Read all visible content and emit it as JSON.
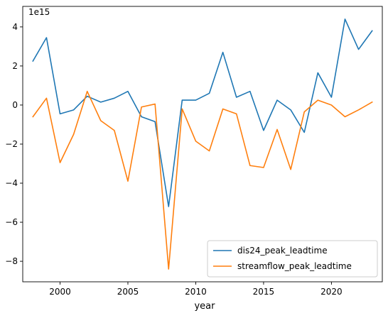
{
  "chart_data": {
    "type": "line",
    "title": "",
    "xlabel": "year",
    "ylabel": "",
    "y_scale_label": "1e15",
    "xlim": [
      1997.25,
      2023.75
    ],
    "ylim": [
      -9.05,
      5.05
    ],
    "x_ticks": [
      {
        "value": 2000,
        "label": "2000"
      },
      {
        "value": 2005,
        "label": "2005"
      },
      {
        "value": 2010,
        "label": "2010"
      },
      {
        "value": 2015,
        "label": "2015"
      },
      {
        "value": 2020,
        "label": "2020"
      }
    ],
    "y_ticks": [
      {
        "value": 4,
        "label": "4"
      },
      {
        "value": 2,
        "label": "2"
      },
      {
        "value": 0,
        "label": "0"
      },
      {
        "value": -2,
        "label": "−2"
      },
      {
        "value": -4,
        "label": "−4"
      },
      {
        "value": -6,
        "label": "−6"
      },
      {
        "value": -8,
        "label": "−8"
      }
    ],
    "grid": false,
    "legend_position": "lower-right",
    "x": [
      1998,
      1999,
      2000,
      2001,
      2002,
      2003,
      2004,
      2005,
      2006,
      2007,
      2008,
      2009,
      2010,
      2011,
      2012,
      2013,
      2014,
      2015,
      2016,
      2017,
      2018,
      2019,
      2020,
      2021,
      2022,
      2023
    ],
    "series": [
      {
        "name": "dis24_peak_leadtime",
        "color": "#1f77b4",
        "values": [
          2.25,
          3.45,
          -0.45,
          -0.25,
          0.45,
          0.15,
          0.35,
          0.7,
          -0.6,
          -0.85,
          -5.2,
          0.25,
          0.25,
          0.6,
          2.7,
          0.4,
          0.7,
          -1.3,
          0.25,
          -0.25,
          -1.4,
          1.65,
          0.4,
          4.4,
          2.85,
          3.8
        ]
      },
      {
        "name": "streamflow_peak_leadtime",
        "color": "#ff7f0e",
        "values": [
          -0.6,
          0.35,
          -2.95,
          -1.5,
          0.7,
          -0.8,
          -1.3,
          -3.9,
          -0.1,
          0.05,
          -8.4,
          -0.2,
          -1.85,
          -2.35,
          -0.2,
          -0.45,
          -3.1,
          -3.2,
          -1.25,
          -3.3,
          -0.35,
          0.25,
          0.0,
          -0.6,
          -0.25,
          0.15
        ]
      }
    ]
  }
}
